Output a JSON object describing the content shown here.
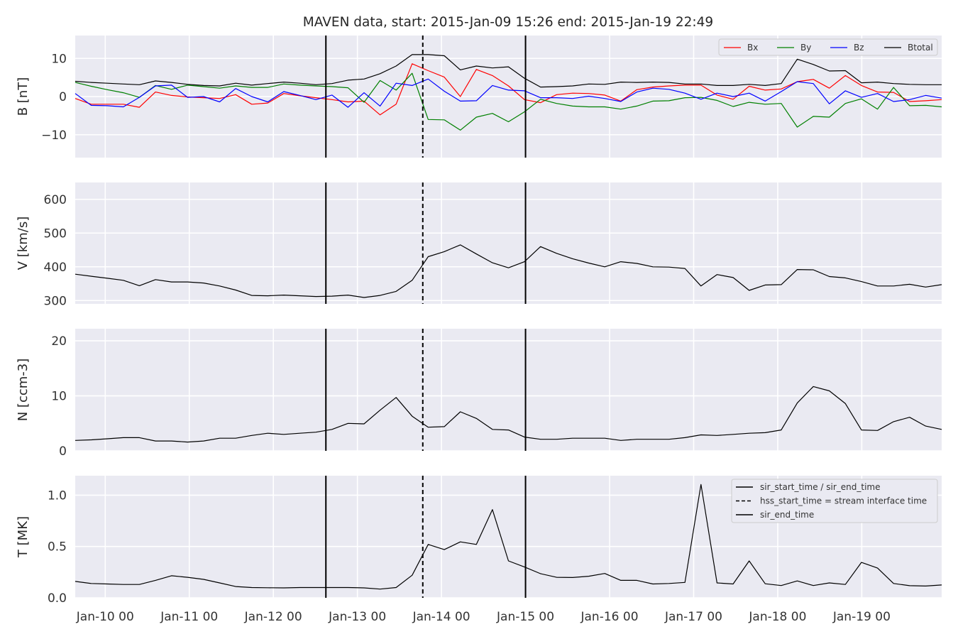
{
  "chart_data": {
    "type": "line",
    "title": "MAVEN data, start: 2015-Jan-09 15:26  end: 2015-Jan-19 22:49",
    "x_unit": "date-time (2015)",
    "x_ticks": [
      {
        "t": "2015-01-10T00:00",
        "label": "Jan-10 00"
      },
      {
        "t": "2015-01-11T00:00",
        "label": "Jan-11 00"
      },
      {
        "t": "2015-01-12T00:00",
        "label": "Jan-12 00"
      },
      {
        "t": "2015-01-13T00:00",
        "label": "Jan-13 00"
      },
      {
        "t": "2015-01-14T00:00",
        "label": "Jan-14 00"
      },
      {
        "t": "2015-01-15T00:00",
        "label": "Jan-15 00"
      },
      {
        "t": "2015-01-16T00:00",
        "label": "Jan-16 00"
      },
      {
        "t": "2015-01-17T00:00",
        "label": "Jan-17 00"
      },
      {
        "t": "2015-01-18T00:00",
        "label": "Jan-18 00"
      },
      {
        "t": "2015-01-19T00:00",
        "label": "Jan-19 00"
      }
    ],
    "xlim": [
      "2015-01-09T15:26",
      "2015-01-19T22:49"
    ],
    "grid": true,
    "event_lines": [
      {
        "t": "2015-01-12T15:00",
        "style": "solid",
        "color": "#000000"
      },
      {
        "t": "2015-01-13T18:40",
        "style": "dashed",
        "color": "#000000"
      },
      {
        "t": "2015-01-15T00:00",
        "style": "solid",
        "color": "#000000"
      }
    ],
    "panels": [
      {
        "name": "B",
        "ylabel": "B [nT]",
        "ylim": [
          -16,
          16
        ],
        "yticks": [
          -10,
          0,
          10
        ],
        "ytick_labels": [
          "−10",
          "0",
          "10"
        ],
        "legend": {
          "placement": "top-right",
          "layout": "horizontal"
        },
        "series": [
          {
            "name": "Bx",
            "color": "#ff0000",
            "values": [
              -0.5,
              -2,
              -2,
              -2,
              -2.8,
              1.2,
              0.3,
              -0.1,
              -0.3,
              -0.5,
              0.5,
              -2,
              -1.7,
              0.8,
              0.2,
              -0.3,
              -0.8,
              -1.4,
              -1.2,
              -4.8,
              -2,
              8.6,
              6.8,
              5.1,
              0,
              7.1,
              5.5,
              2.8,
              -0.8,
              -1.6,
              0.5,
              0.9,
              0.8,
              0.4,
              -1.2,
              1.8,
              2.5,
              2.8,
              3,
              3,
              0.4,
              -0.7,
              2.7,
              1.7,
              2,
              3.9,
              4.5,
              2.2,
              5.5,
              2.9,
              1.2,
              1.1,
              -1.3,
              -1.1,
              -0.8
            ]
          },
          {
            "name": "By",
            "color": "#008000",
            "values": [
              3.7,
              2.7,
              1.8,
              1,
              -0.2,
              2.9,
              1.9,
              3,
              2.6,
              2.2,
              2.8,
              2.4,
              2.4,
              3.3,
              3,
              2.8,
              2.6,
              2.3,
              -1.5,
              4.2,
              1.7,
              6.1,
              -6,
              -6.1,
              -8.8,
              -5.4,
              -4.4,
              -6.6,
              -4,
              -0.7,
              -1.8,
              -2.5,
              -2.7,
              -2.7,
              -3.3,
              -2.5,
              -1.2,
              -1.1,
              -0.3,
              -0.2,
              -1,
              -2.6,
              -1.5,
              -2,
              -1.8,
              -8,
              -5.2,
              -5.4,
              -1.8,
              -0.6,
              -3.3,
              2.4,
              -2.4,
              -2.3,
              -2.7
            ]
          },
          {
            "name": "Bz",
            "color": "#0000ff",
            "values": [
              0.8,
              -2.3,
              -2.4,
              -2.7,
              -0.2,
              2.8,
              3,
              -0.2,
              0,
              -1.4,
              2.1,
              0,
              -1.4,
              1.3,
              0.3,
              -0.8,
              0.4,
              -2.8,
              1,
              -2.5,
              3.5,
              2.9,
              4.6,
              1.4,
              -1.2,
              -1.1,
              2.9,
              1.7,
              1.5,
              -0.3,
              -0.3,
              -0.5,
              0.1,
              -0.5,
              -1.3,
              1.2,
              2.2,
              1.9,
              0.9,
              -0.7,
              0.9,
              0,
              0.9,
              -1.2,
              1.3,
              3.9,
              3.4,
              -1.9,
              1.5,
              -0.2,
              0.8,
              -1.3,
              -0.8,
              0.3,
              -0.4
            ]
          },
          {
            "name": "Btotal",
            "color": "#000000",
            "values": [
              4,
              3.7,
              3.5,
              3.3,
              3.1,
              4.1,
              3.7,
              3.2,
              2.9,
              2.8,
              3.5,
              3,
              3.4,
              3.8,
              3.5,
              3.1,
              3.4,
              4.3,
              4.6,
              6,
              8,
              11,
              11,
              10.7,
              7,
              8,
              7.5,
              7.8,
              4.8,
              2.5,
              2.6,
              2.8,
              3.3,
              3.2,
              3.8,
              3.7,
              3.8,
              3.7,
              3.3,
              3.3,
              2.9,
              2.9,
              3.2,
              2.9,
              3.4,
              9.8,
              8.4,
              6.7,
              6.8,
              3.6,
              3.8,
              3.4,
              3.2,
              3.1,
              3.1
            ]
          }
        ]
      },
      {
        "name": "V",
        "ylabel": "V [km/s]",
        "ylim": [
          290,
          650
        ],
        "yticks": [
          300,
          400,
          500,
          600
        ],
        "ytick_labels": [
          "300",
          "400",
          "500",
          "600"
        ],
        "series": [
          {
            "name": "V",
            "color": "#000000",
            "values": [
              378,
              372,
              366,
              360,
              344,
              362,
              355,
              355,
              352,
              343,
              331,
              315,
              314,
              316,
              314,
              312,
              313,
              316,
              309,
              315,
              327,
              360,
              430,
              445,
              465,
              438,
              412,
              397,
              415,
              460,
              440,
              424,
              411,
              400,
              415,
              410,
              400,
              399,
              395,
              343,
              377,
              368,
              330,
              346,
              347,
              392,
              391,
              371,
              367,
              356,
              343,
              343,
              348,
              340,
              347
            ]
          }
        ]
      },
      {
        "name": "N",
        "ylabel": "N [ccm-3]",
        "ylim": [
          0,
          22.2
        ],
        "yticks": [
          0,
          10,
          20
        ],
        "ytick_labels": [
          "0",
          "10",
          "20"
        ],
        "series": [
          {
            "name": "N",
            "color": "#000000",
            "values": [
              1.9,
              2,
              2.2,
              2.4,
              2.4,
              1.8,
              1.8,
              1.6,
              1.8,
              2.3,
              2.3,
              2.8,
              3.2,
              3,
              3.2,
              3.4,
              3.9,
              5,
              4.9,
              7.4,
              9.7,
              6.3,
              4.3,
              4.4,
              7.1,
              5.9,
              3.9,
              3.8,
              2.5,
              2.1,
              2.1,
              2.3,
              2.3,
              2.3,
              1.9,
              2.1,
              2.1,
              2.1,
              2.4,
              2.9,
              2.8,
              3,
              3.2,
              3.3,
              3.8,
              8.7,
              11.7,
              10.9,
              8.6,
              3.8,
              3.7,
              5.3,
              6.1,
              4.5,
              3.9
            ]
          }
        ]
      },
      {
        "name": "T",
        "ylabel": "T [MK]",
        "ylim": [
          0,
          1.19
        ],
        "yticks": [
          0.0,
          0.5,
          1.0
        ],
        "ytick_labels": [
          "0.0",
          "0.5",
          "1.0"
        ],
        "legend": {
          "placement": "top-right",
          "entries": [
            {
              "label": "sir_start_time / sir_end_time",
              "style": "solid"
            },
            {
              "label": "hss_start_time = stream interface time",
              "style": "dashed"
            },
            {
              "label": "sir_end_time",
              "style": "solid"
            }
          ]
        },
        "series": [
          {
            "name": "T",
            "color": "#000000",
            "values": [
              0.16,
              0.14,
              0.135,
              0.13,
              0.13,
              0.17,
              0.215,
              0.2,
              0.18,
              0.145,
              0.11,
              0.1,
              0.098,
              0.097,
              0.1,
              0.1,
              0.1,
              0.1,
              0.097,
              0.085,
              0.1,
              0.22,
              0.52,
              0.47,
              0.545,
              0.52,
              0.86,
              0.36,
              0.3,
              0.235,
              0.2,
              0.198,
              0.21,
              0.237,
              0.17,
              0.17,
              0.135,
              0.14,
              0.15,
              1.105,
              0.145,
              0.135,
              0.36,
              0.137,
              0.12,
              0.165,
              0.12,
              0.145,
              0.13,
              0.345,
              0.29,
              0.14,
              0.118,
              0.115,
              0.125
            ]
          }
        ]
      }
    ]
  }
}
